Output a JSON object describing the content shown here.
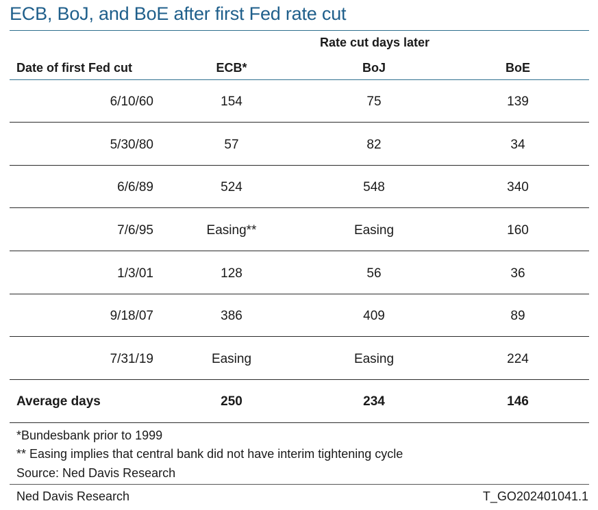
{
  "title": "ECB, BoJ, and BoE after first Fed rate cut",
  "chart_data": {
    "type": "table",
    "group_header": "Rate cut days later",
    "columns": [
      "Date of first Fed cut",
      "ECB*",
      "BoJ",
      "BoE"
    ],
    "rows": [
      [
        "6/10/60",
        "154",
        "75",
        "139"
      ],
      [
        "5/30/80",
        "57",
        "82",
        "34"
      ],
      [
        "6/6/89",
        "524",
        "548",
        "340"
      ],
      [
        "7/6/95",
        "Easing**",
        "Easing",
        "160"
      ],
      [
        "1/3/01",
        "128",
        "56",
        "36"
      ],
      [
        "9/18/07",
        "386",
        "409",
        "89"
      ],
      [
        "7/31/19",
        "Easing",
        "Easing",
        "224"
      ]
    ],
    "summary": [
      "Average days",
      "250",
      "234",
      "146"
    ]
  },
  "notes": [
    "*Bundesbank prior to 1999",
    "** Easing implies that central bank did not have interim tightening cycle",
    "Source: Ned Davis Research"
  ],
  "footer": {
    "left": "Ned Davis Research",
    "right": "T_GO202401041.1"
  },
  "colors": {
    "title": "#1f5f8b",
    "header_rule": "#2e6f8e"
  }
}
